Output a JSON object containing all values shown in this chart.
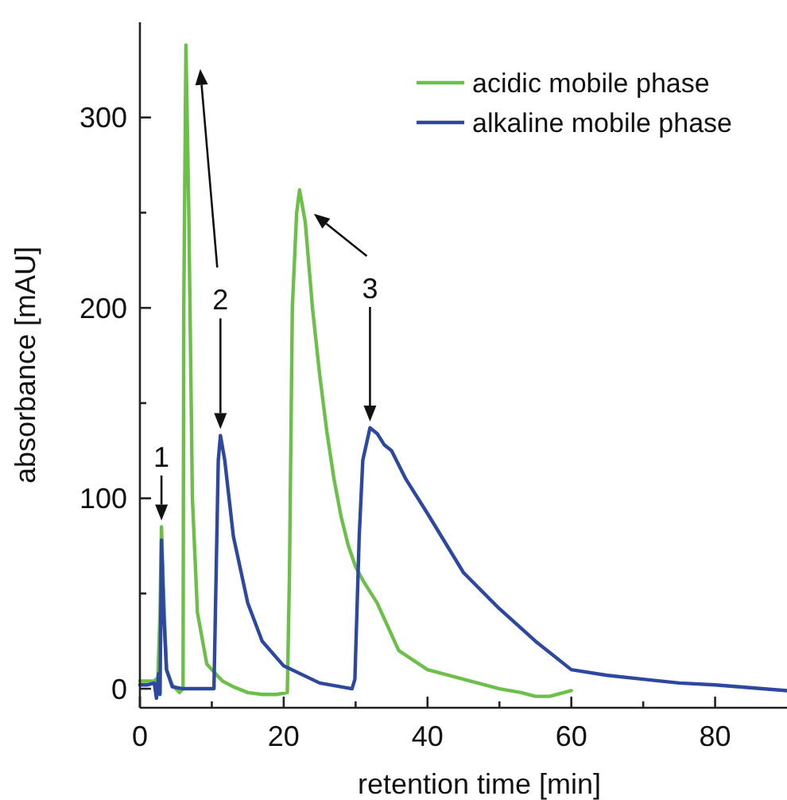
{
  "chart_data": {
    "type": "line",
    "xlabel": "retention time [min]",
    "ylabel": "absorbance [mAU]",
    "xlim": [
      0,
      90
    ],
    "ylim": [
      -10,
      350
    ],
    "xticks": [
      0,
      {
        "value": 10,
        "label": null
      },
      20,
      {
        "value": 30,
        "label": null
      },
      40,
      {
        "value": 50,
        "label": null
      },
      60,
      {
        "value": 70,
        "label": null
      },
      80
    ],
    "yticks": [
      0,
      {
        "value": 50,
        "label": null
      },
      100,
      {
        "value": 150,
        "label": null
      },
      200,
      {
        "value": 250,
        "label": null
      },
      300
    ],
    "grid": false,
    "legend": "top right",
    "line_style": "solid",
    "series": [
      {
        "name": "acidic mobile phase",
        "color": "#6cc04a",
        "x": [
          0,
          1,
          2,
          2.5,
          2.8,
          3,
          3.3,
          3.7,
          4.5,
          5.5,
          6,
          6.1,
          6.4,
          6.8,
          7.3,
          8,
          9.3,
          10.5,
          11.5,
          13,
          15,
          17,
          19,
          20.5,
          20.8,
          21.2,
          21.8,
          22.2,
          23,
          24,
          25,
          26,
          27,
          28,
          29,
          30,
          31,
          33,
          36,
          40,
          45,
          50,
          53,
          55,
          57,
          60
        ],
        "values": [
          4,
          4,
          4,
          6,
          40,
          85,
          50,
          10,
          2,
          -2,
          0,
          200,
          338,
          250,
          100,
          40,
          13,
          8,
          4,
          1,
          -2,
          -3,
          -3,
          -2,
          60,
          200,
          250,
          262,
          245,
          200,
          165,
          135,
          110,
          90,
          75,
          64,
          57,
          45,
          20,
          10,
          5,
          0,
          -2,
          -4,
          -4,
          -1
        ]
      },
      {
        "name": "alkaline mobile phase",
        "color": "#2e48a0",
        "x": [
          0,
          1,
          2,
          2.3,
          2.6,
          2.8,
          3,
          3.3,
          3.7,
          4.5,
          6,
          8,
          10.3,
          10.6,
          10.9,
          11.2,
          11.8,
          13,
          15,
          17,
          20,
          25,
          29.5,
          29.9,
          30.5,
          31,
          32,
          33,
          34,
          35,
          37,
          40,
          45,
          50,
          55,
          60,
          65,
          70,
          75,
          80,
          90
        ],
        "values": [
          2,
          2,
          3,
          -5,
          8,
          -3,
          78,
          40,
          10,
          1,
          0,
          0,
          0,
          60,
          120,
          133,
          120,
          80,
          45,
          25,
          12,
          3,
          0,
          5,
          80,
          120,
          137,
          134,
          128,
          125,
          110,
          92,
          61,
          42,
          25,
          10,
          7,
          5,
          3,
          2,
          -1
        ]
      }
    ],
    "annotations": [
      "1",
      "2",
      "3"
    ]
  }
}
